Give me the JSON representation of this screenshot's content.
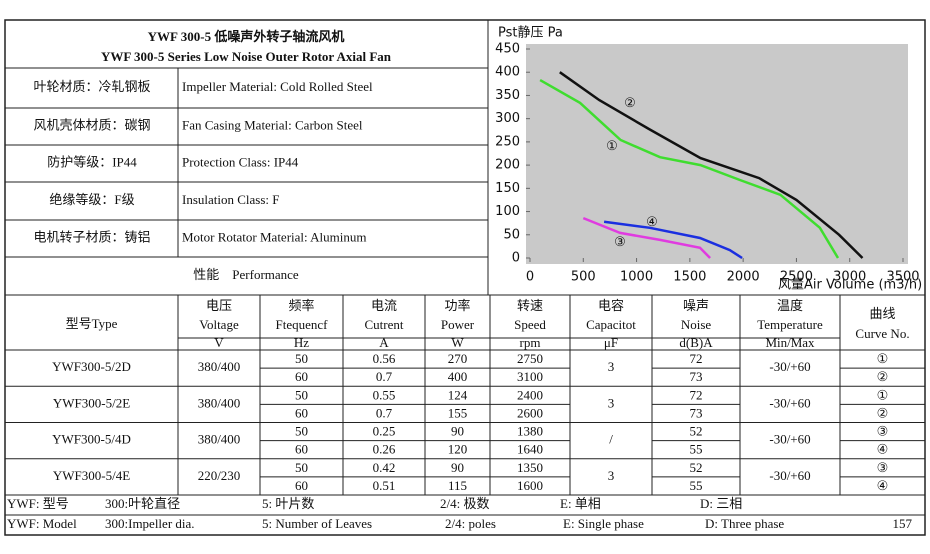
{
  "header": {
    "title_cn": "YWF 300-5 低噪声外转子轴流风机",
    "title_en": "YWF 300-5 Series Low Noise Outer Rotor Axial Fan"
  },
  "materials": [
    [
      "叶轮材质：冷轧钢板",
      "Impeller Material: Cold Rolled Steel"
    ],
    [
      "风机壳体材质：碳钢",
      "Fan Casing Material: Carbon Steel"
    ],
    [
      "防护等级：IP44",
      "Protection Class: IP44"
    ],
    [
      "绝缘等级：F级",
      "Insulation Class: F"
    ],
    [
      "电机转子材质：铸铝",
      "Motor Rotator Material: Aluminum"
    ]
  ],
  "performance": "性能　Performance",
  "chart_data": {
    "type": "line",
    "y_label": "Pst静压 Pa",
    "x_label": "风量Air Volume (m3/h)",
    "xlim": [
      0,
      3500
    ],
    "ylim": [
      0,
      450
    ],
    "xticks": [
      0,
      500,
      1000,
      1500,
      2000,
      2500,
      3000,
      3500
    ],
    "yticks": [
      0,
      50,
      100,
      150,
      200,
      250,
      300,
      350,
      400,
      450
    ],
    "series": [
      {
        "name": "①",
        "color": "#3fdd2f",
        "x": [
          95,
          470,
          850,
          1220,
          1600,
          1970,
          2350,
          2720,
          2890
        ],
        "values": [
          383,
          334,
          254,
          217,
          200,
          168,
          136,
          65,
          0
        ]
      },
      {
        "name": "②",
        "color": "#111111",
        "x": [
          280,
          650,
          1100,
          1600,
          2150,
          2500,
          2900,
          3120
        ],
        "values": [
          400,
          340,
          280,
          215,
          172,
          125,
          50,
          0
        ]
      },
      {
        "name": "③",
        "color": "#e03be0",
        "x": [
          500,
          845,
          1220,
          1595,
          1690
        ],
        "values": [
          86,
          54,
          39,
          22,
          0
        ]
      },
      {
        "name": "④",
        "color": "#1b2fe0",
        "x": [
          695,
          1125,
          1595,
          1875,
          1990
        ],
        "values": [
          78,
          65,
          43,
          17,
          0
        ]
      }
    ]
  },
  "table": {
    "columns": [
      [
        "型号Type"
      ],
      [
        "电压",
        "Voltage",
        "V"
      ],
      [
        "频率",
        "Ftequencf",
        "Hz"
      ],
      [
        "电流",
        "Cutrent",
        "A"
      ],
      [
        "功率",
        "Power",
        "W"
      ],
      [
        "转速",
        "Speed",
        "rpm"
      ],
      [
        "电容",
        "Capacitot",
        "μF"
      ],
      [
        "噪声",
        "Noise",
        "d(B)A"
      ],
      [
        "温度",
        "Temperature",
        "Min/Max"
      ],
      [
        "曲线",
        "Curve No."
      ]
    ],
    "rows": [
      [
        "YWF300-5/2D",
        "380/400",
        [
          50,
          60
        ],
        [
          "0.56",
          "0.7"
        ],
        [
          270,
          400
        ],
        [
          2750,
          3100
        ],
        "3",
        [
          72,
          73
        ],
        "-30/+60",
        [
          "①",
          "②"
        ]
      ],
      [
        "YWF300-5/2E",
        "380/400",
        [
          50,
          60
        ],
        [
          "0.55",
          "0.7"
        ],
        [
          124,
          155
        ],
        [
          2400,
          2600
        ],
        "3",
        [
          72,
          73
        ],
        "-30/+60",
        [
          "①",
          "②"
        ]
      ],
      [
        "YWF300-5/4D",
        "380/400",
        [
          50,
          60
        ],
        [
          "0.25",
          "0.26"
        ],
        [
          90,
          120
        ],
        [
          1380,
          1640
        ],
        "/",
        [
          52,
          55
        ],
        "-30/+60",
        [
          "③",
          "④"
        ]
      ],
      [
        "YWF300-5/4E",
        "220/230",
        [
          50,
          60
        ],
        [
          "0.42",
          "0.51"
        ],
        [
          90,
          115
        ],
        [
          1350,
          1600
        ],
        "3",
        [
          52,
          55
        ],
        "-30/+60",
        [
          "③",
          "④"
        ]
      ]
    ]
  },
  "footer": {
    "cn": [
      "YWF: 型号",
      "300:叶轮直径",
      "5: 叶片数",
      "2/4: 极数",
      "E: 单相",
      "D: 三相"
    ],
    "en": [
      "YWF: Model",
      "300:Impeller dia.",
      "5: Number of Leaves",
      "2/4: poles",
      "E: Single phase",
      "D: Three phase"
    ]
  },
  "page_number": "157"
}
